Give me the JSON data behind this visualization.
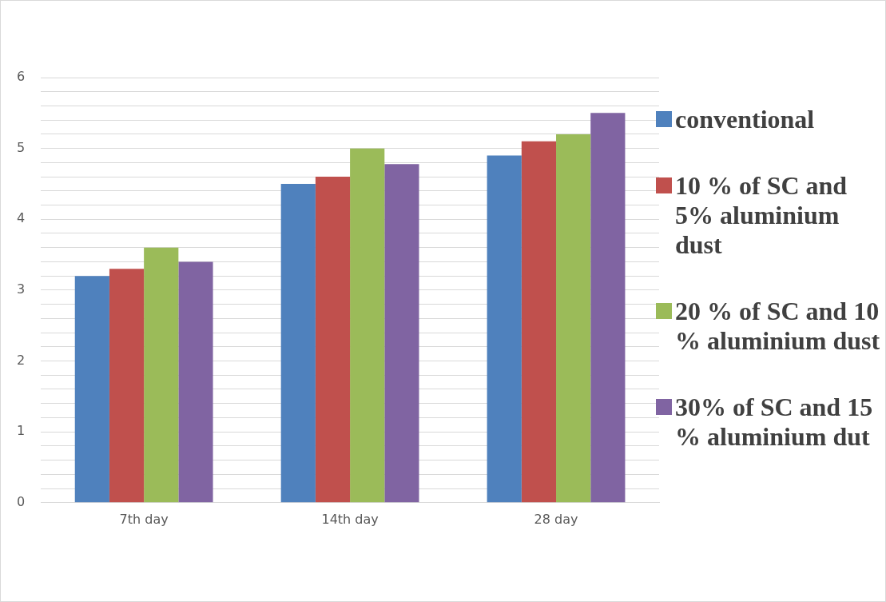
{
  "chart_data": {
    "type": "bar",
    "categories": [
      "7th day",
      "14th day",
      "28 day"
    ],
    "series": [
      {
        "name": "conventional",
        "color": "#4f81bd",
        "values": [
          3.2,
          4.5,
          4.9
        ]
      },
      {
        "name": "10 % of SC and 5% aluminium dust",
        "color": "#c0504d",
        "values": [
          3.3,
          4.6,
          5.1
        ]
      },
      {
        "name": "20 % of SC and 10 % aluminium dust",
        "color": "#9bbb59",
        "values": [
          3.6,
          5.0,
          5.2
        ]
      },
      {
        "name": "30% of SC and 15 % aluminium dut",
        "color": "#8064a2",
        "values": [
          3.4,
          4.78,
          5.5
        ]
      }
    ],
    "ylim": [
      0,
      6
    ],
    "yticks": [
      0,
      {
        "value": 0.2,
        "label": null
      },
      {
        "value": 0.4,
        "label": null
      },
      {
        "value": 0.6,
        "label": null
      },
      {
        "value": 0.8,
        "label": null
      },
      1,
      {
        "value": 1.2,
        "label": null
      },
      {
        "value": 1.4,
        "label": null
      },
      {
        "value": 1.6,
        "label": null
      },
      {
        "value": 1.8,
        "label": null
      },
      2,
      {
        "value": 2.2,
        "label": null
      },
      {
        "value": 2.4,
        "label": null
      },
      {
        "value": 2.6,
        "label": null
      },
      {
        "value": 2.8,
        "label": null
      },
      3,
      {
        "value": 3.2,
        "label": null
      },
      {
        "value": 3.4,
        "label": null
      },
      {
        "value": 3.6,
        "label": null
      },
      {
        "value": 3.8,
        "label": null
      },
      4,
      {
        "value": 4.2,
        "label": null
      },
      {
        "value": 4.4,
        "label": null
      },
      {
        "value": 4.6,
        "label": null
      },
      {
        "value": 4.8,
        "label": null
      },
      5,
      {
        "value": 5.2,
        "label": null
      },
      {
        "value": 5.4,
        "label": null
      },
      {
        "value": 5.6,
        "label": null
      },
      {
        "value": 5.8,
        "label": null
      },
      6
    ],
    "grid": "y",
    "legend": "right"
  }
}
